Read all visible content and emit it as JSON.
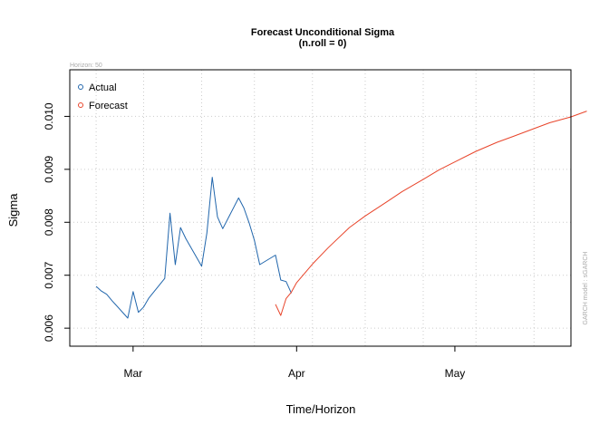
{
  "chart_data": {
    "type": "line",
    "title": "Forecast Unconditional Sigma",
    "subtitle": "(n.roll = 0)",
    "corner_note": "Horizon: 50",
    "side_note": "GARCH model : sGARCH",
    "xlabel": "Time/Horizon",
    "ylabel": "Sigma",
    "x_axis": {
      "type": "date",
      "range": [
        "2022-02-17",
        "2022-05-23"
      ],
      "ticks": [
        {
          "date": "2022-03-01",
          "label": "Mar"
        },
        {
          "date": "2022-04-01",
          "label": "Apr"
        },
        {
          "date": "2022-05-01",
          "label": "May"
        }
      ],
      "grid_dates": [
        "2022-02-22",
        "2022-03-03",
        "2022-03-14",
        "2022-03-24",
        "2022-04-04",
        "2022-04-14",
        "2022-04-25",
        "2022-05-05",
        "2022-05-16"
      ]
    },
    "y_axis": {
      "range": [
        0.00566,
        0.01088
      ],
      "ticks": [
        {
          "value": 0.006,
          "label": "0.006"
        },
        {
          "value": 0.007,
          "label": "0.007"
        },
        {
          "value": 0.008,
          "label": "0.008"
        },
        {
          "value": 0.009,
          "label": "0.009"
        },
        {
          "value": 0.01,
          "label": "0.010"
        }
      ]
    },
    "grid": true,
    "legend": {
      "position": "top-left",
      "entries": [
        {
          "label": "Actual",
          "color": "#2166ac"
        },
        {
          "label": "Forecast",
          "color": "#e8442a"
        }
      ]
    },
    "series": [
      {
        "name": "Actual",
        "color": "#2166ac",
        "points": [
          [
            "2022-02-22",
            0.00679
          ],
          [
            "2022-02-23",
            0.0067
          ],
          [
            "2022-02-24",
            0.00664
          ],
          [
            "2022-02-25",
            0.00652
          ],
          [
            "2022-02-28",
            0.00619
          ],
          [
            "2022-03-01",
            0.00669
          ],
          [
            "2022-03-02",
            0.0063
          ],
          [
            "2022-03-03",
            0.0064
          ],
          [
            "2022-03-04",
            0.00657
          ],
          [
            "2022-03-07",
            0.00694
          ],
          [
            "2022-03-08",
            0.00817
          ],
          [
            "2022-03-09",
            0.0072
          ],
          [
            "2022-03-10",
            0.0079
          ],
          [
            "2022-03-11",
            0.00769
          ],
          [
            "2022-03-14",
            0.00717
          ],
          [
            "2022-03-15",
            0.0078
          ],
          [
            "2022-03-16",
            0.00885
          ],
          [
            "2022-03-17",
            0.0081
          ],
          [
            "2022-03-18",
            0.00788
          ],
          [
            "2022-03-21",
            0.00846
          ],
          [
            "2022-03-22",
            0.00827
          ],
          [
            "2022-03-23",
            0.00799
          ],
          [
            "2022-03-24",
            0.00766
          ],
          [
            "2022-03-25",
            0.0072
          ],
          [
            "2022-03-28",
            0.00738
          ],
          [
            "2022-03-29",
            0.00691
          ],
          [
            "2022-03-30",
            0.00688
          ],
          [
            "2022-03-31",
            0.00666
          ]
        ]
      },
      {
        "name": "Forecast",
        "color": "#e8442a",
        "points": [
          [
            "2022-03-28",
            0.00645
          ],
          [
            "2022-03-29",
            0.00624
          ],
          [
            "2022-03-30",
            0.00656
          ],
          [
            "2022-03-31",
            0.00668
          ],
          [
            "2022-04-01",
            0.00686
          ],
          [
            "2022-04-04",
            0.00721
          ],
          [
            "2022-04-07",
            0.00752
          ],
          [
            "2022-04-11",
            0.0079
          ],
          [
            "2022-04-14",
            0.00812
          ],
          [
            "2022-04-18",
            0.00838
          ],
          [
            "2022-04-21",
            0.00858
          ],
          [
            "2022-04-25",
            0.00881
          ],
          [
            "2022-04-28",
            0.00899
          ],
          [
            "2022-05-02",
            0.00919
          ],
          [
            "2022-05-05",
            0.00934
          ],
          [
            "2022-05-09",
            0.00951
          ],
          [
            "2022-05-12",
            0.00962
          ],
          [
            "2022-05-16",
            0.00977
          ],
          [
            "2022-05-19",
            0.00988
          ],
          [
            "2022-05-23",
            0.00999
          ],
          [
            "2022-05-26",
            0.0101
          ]
        ]
      }
    ]
  }
}
